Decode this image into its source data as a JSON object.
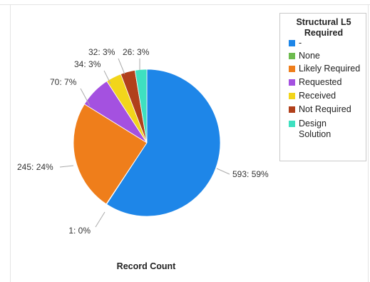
{
  "chart_data": {
    "type": "pie",
    "legend_title": "Structural L5 Required",
    "legend_position": "top-right",
    "xlabel": "Record Count",
    "slices": [
      {
        "name": "-",
        "value": 593,
        "label": "593: 59%",
        "color": "#1e86e8"
      },
      {
        "name": "None",
        "value": 1,
        "label": "1: 0%",
        "color": "#6dbb4f"
      },
      {
        "name": "Likely Required",
        "value": 245,
        "label": "245: 24%",
        "color": "#ef7e1b"
      },
      {
        "name": "Requested",
        "value": 70,
        "label": "70: 7%",
        "color": "#a451e0"
      },
      {
        "name": "Received",
        "value": 34,
        "label": "34: 3%",
        "color": "#f2d51b"
      },
      {
        "name": "Not Required",
        "value": 32,
        "label": "32: 3%",
        "color": "#b1401b"
      },
      {
        "name": "Design Solution",
        "value": 26,
        "label": "26: 3%",
        "color": "#3ee0c0"
      }
    ]
  }
}
